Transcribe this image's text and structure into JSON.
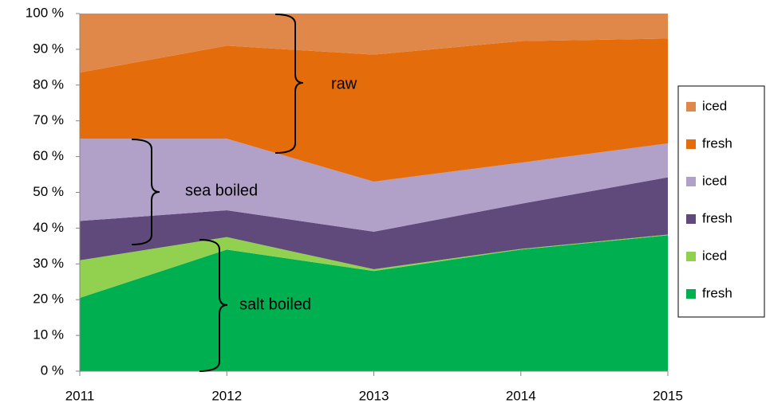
{
  "chart_data": {
    "type": "stacked-area-percent",
    "x": [
      2011,
      2012,
      2013,
      2014,
      2015
    ],
    "xlim": [
      2011,
      2015
    ],
    "xticks": [
      2011,
      2012,
      2013,
      2014,
      2015
    ],
    "ylim": [
      0,
      100
    ],
    "yticks": [
      {
        "value": 0,
        "label": "0 %"
      },
      {
        "value": 10,
        "label": "10 %"
      },
      {
        "value": 20,
        "label": "20 %"
      },
      {
        "value": 30,
        "label": "30 %"
      },
      {
        "value": 40,
        "label": "40 %"
      },
      {
        "value": 50,
        "label": "50 %"
      },
      {
        "value": 60,
        "label": "60 %"
      },
      {
        "value": 70,
        "label": "70 %"
      },
      {
        "value": 80,
        "label": "80 %"
      },
      {
        "value": 90,
        "label": "90 %"
      },
      {
        "value": 100,
        "label": "100 %"
      }
    ],
    "series": [
      {
        "name": "fresh",
        "color": "#00b050",
        "values": [
          20.5,
          34,
          28,
          34,
          38
        ]
      },
      {
        "name": "iced",
        "color": "#92d050",
        "values": [
          10.5,
          3.5,
          0.5,
          0.2,
          0.2
        ]
      },
      {
        "name": "fresh",
        "color": "#604a7b",
        "values": [
          11,
          7.5,
          10.5,
          12.6,
          16
        ]
      },
      {
        "name": "iced",
        "color": "#b1a0c7",
        "values": [
          23,
          20,
          14,
          11.5,
          9.5
        ]
      },
      {
        "name": "fresh",
        "color": "#e46c0a",
        "values": [
          18.5,
          26,
          35.5,
          34,
          29.3
        ]
      },
      {
        "name": "iced",
        "color": "#e0884a",
        "values": [
          16.5,
          9,
          11.5,
          7.7,
          7
        ]
      }
    ],
    "annotations": [
      "raw",
      "sea boiled",
      "salt boiled"
    ],
    "legend": "right"
  }
}
